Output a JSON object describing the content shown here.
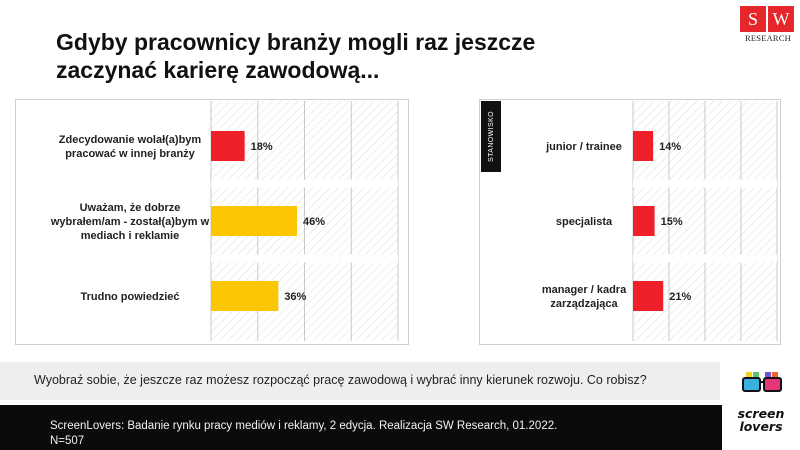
{
  "title": "Gdyby pracownicy branży mogli raz jeszcze zaczynać karierę zawodową...",
  "logo": {
    "initials": [
      "S",
      "W"
    ],
    "name": "RESEARCH"
  },
  "question": "Wyobraź sobie, że jeszcze raz możesz rozpocząć pracę zawodową i wybrać inny kierunek rozwoju. Co robisz?",
  "footer_note": "ScreenLovers: Badanie rynku pracy mediów i reklamy, 2 edycja. Realizacja SW Research, 01.2022. N=507",
  "brand_logo": {
    "lines": [
      "screen",
      "lovers"
    ]
  },
  "colors": {
    "red": "#f0202a",
    "yellow": "#fcc603",
    "accent": "#e5262b"
  },
  "chart_data": [
    {
      "type": "bar",
      "orientation": "horizontal",
      "categories": [
        [
          "Zdecydowanie wolał(a)bym",
          "pracować w innej branży"
        ],
        [
          "Uważam, że dobrze",
          "wybrałem/am - został(a)bym w",
          "mediach i reklamie"
        ],
        [
          "Trudno powiedzieć"
        ]
      ],
      "values": [
        18,
        46,
        36
      ],
      "value_labels": [
        "18%",
        "46%",
        "36%"
      ],
      "colors": [
        "#f0202a",
        "#fcc603",
        "#fcc603"
      ],
      "xlim": [
        0,
        100
      ],
      "grid": true
    },
    {
      "type": "bar",
      "orientation": "horizontal",
      "section_label": "STANOWISKO",
      "categories": [
        [
          "junior / trainee"
        ],
        [
          "specjalista"
        ],
        [
          "manager / kadra",
          "zarządzająca"
        ]
      ],
      "values": [
        14,
        15,
        21
      ],
      "value_labels": [
        "14%",
        "15%",
        "21%"
      ],
      "colors": [
        "#f0202a",
        "#f0202a",
        "#f0202a"
      ],
      "xlim": [
        0,
        100
      ],
      "grid": true
    }
  ]
}
